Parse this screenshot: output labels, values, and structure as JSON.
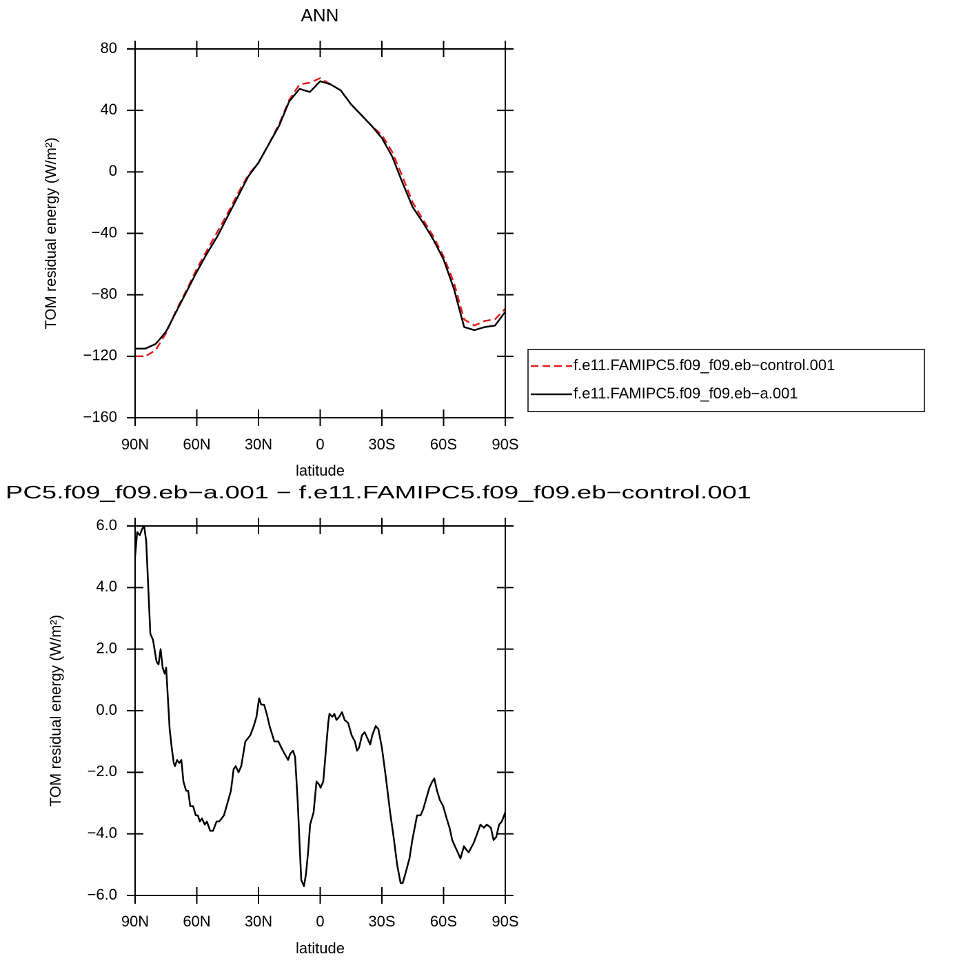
{
  "chart_data": [
    {
      "type": "line",
      "title": "ANN",
      "xlabel": "latitude",
      "ylabel": "TOM residual energy (W/m²)",
      "x": [
        90,
        85,
        80,
        75,
        70,
        65,
        60,
        55,
        50,
        45,
        40,
        35,
        30,
        25,
        20,
        15,
        10,
        5,
        0,
        -5,
        -10,
        -15,
        -20,
        -25,
        -30,
        -35,
        -40,
        -45,
        -50,
        -55,
        -60,
        -65,
        -70,
        -75,
        -80,
        -85,
        -90
      ],
      "series": [
        {
          "name": "f.e11.FAMIPC5.f09_f09.eb−control.001",
          "color": "#e41a1c",
          "dash": "dashed",
          "values": [
            -120,
            -120,
            -116,
            -105,
            -90,
            -77,
            -63,
            -51,
            -39,
            -27,
            -14,
            -2,
            6,
            18,
            31,
            47,
            57,
            58,
            61,
            57,
            53,
            44,
            37,
            30,
            24,
            13,
            -3,
            -20,
            -31,
            -42,
            -55,
            -72,
            -96,
            -100,
            -97,
            -96,
            -89
          ]
        },
        {
          "name": "f.e11.FAMIPC5.f09_f09.eb−a.001",
          "color": "#000000",
          "dash": "solid",
          "values": [
            -115,
            -115,
            -112,
            -104,
            -91,
            -78,
            -65,
            -53,
            -42,
            -29,
            -16,
            -3,
            6,
            18,
            30,
            46,
            54,
            52,
            59,
            57,
            53,
            44,
            37,
            30,
            22,
            10,
            -7,
            -23,
            -33,
            -44,
            -57,
            -76,
            -101,
            -103,
            -101,
            -100,
            -91
          ]
        }
      ],
      "xlim": [
        90,
        -90
      ],
      "xticks": [
        {
          "value": 90,
          "label": "90N"
        },
        {
          "value": 60,
          "label": "60N"
        },
        {
          "value": 30,
          "label": "30N"
        },
        0,
        {
          "value": -30,
          "label": "30S"
        },
        {
          "value": -60,
          "label": "60S"
        },
        {
          "value": -90,
          "label": "90S"
        }
      ],
      "ylim": [
        -160,
        80
      ],
      "yticks": [
        {
          "value": 80,
          "label": "80"
        },
        {
          "value": 40,
          "label": "40"
        },
        0,
        {
          "value": -40,
          "label": "−40"
        },
        {
          "value": -80,
          "label": "−80"
        },
        {
          "value": -120,
          "label": "−120"
        },
        {
          "value": -160,
          "label": "−160"
        }
      ],
      "legend": "right"
    },
    {
      "type": "line",
      "title": "PC5.f09_f09.eb−a.001  −  f.e11.FAMIPC5.f09_f09.eb−control.001",
      "xlabel": "latitude",
      "ylabel": "TOM residual energy (W/m²)",
      "x": [
        90,
        89,
        87.7,
        86.6,
        85.6,
        84.6,
        82.6,
        81.3,
        79.6,
        78.6,
        77.6,
        76.6,
        75.6,
        74.9,
        73.2,
        72.2,
        71.2,
        70.6,
        69.6,
        68.5,
        67.5,
        66.5,
        65.2,
        64.2,
        63.2,
        61.8,
        60.5,
        59.5,
        58.5,
        57.5,
        56.1,
        55.1,
        53.5,
        52.1,
        50.4,
        49.1,
        46.8,
        45.1,
        43.4,
        42.1,
        41.1,
        39.7,
        38.4,
        36.4,
        34.0,
        32.3,
        31.0,
        29.7,
        28.7,
        27.3,
        26.0,
        24.6,
        22.3,
        20.3,
        18.9,
        17.3,
        15.6,
        14.6,
        13.2,
        12.2,
        10.9,
        9.9,
        9.2,
        7.9,
        6.9,
        5.9,
        4.9,
        3.2,
        1.8,
        0.5,
        -0.2,
        -1.5,
        -2.5,
        -3.9,
        -4.5,
        -5.9,
        -6.9,
        -7.9,
        -9.2,
        -10.6,
        -11.9,
        -13.6,
        -15.3,
        -16.9,
        -17.9,
        -18.9,
        -20.3,
        -21.6,
        -23.0,
        -24.3,
        -25.3,
        -27.0,
        -28.3,
        -30.0,
        -32.0,
        -34.0,
        -35.7,
        -37.4,
        -39.1,
        -40.1,
        -41.4,
        -43.4,
        -44.8,
        -47.1,
        -48.8,
        -50.1,
        -51.8,
        -53.1,
        -54.5,
        -55.5,
        -56.8,
        -58.2,
        -59.8,
        -61.5,
        -62.9,
        -64.2,
        -65.5,
        -66.9,
        -68.2,
        -69.9,
        -70.9,
        -72.2,
        -74.6,
        -76.3,
        -77.9,
        -79.6,
        -81.0,
        -83.0,
        -84.3,
        -85.6,
        -87.0,
        -88.3,
        -90
      ],
      "series": [
        {
          "color": "#000000",
          "dash": "solid",
          "values": [
            5.0,
            5.8,
            5.7,
            5.9,
            6.0,
            5.5,
            2.5,
            2.3,
            1.6,
            1.5,
            2.0,
            1.4,
            1.2,
            1.4,
            -0.6,
            -1.2,
            -1.7,
            -1.8,
            -1.6,
            -1.7,
            -1.6,
            -2.3,
            -2.6,
            -2.6,
            -3.1,
            -3.1,
            -3.4,
            -3.4,
            -3.6,
            -3.5,
            -3.7,
            -3.6,
            -3.9,
            -3.9,
            -3.6,
            -3.6,
            -3.4,
            -3.0,
            -2.6,
            -1.9,
            -1.8,
            -2.0,
            -1.8,
            -1.0,
            -0.8,
            -0.5,
            -0.2,
            0.4,
            0.2,
            0.2,
            -0.1,
            -0.5,
            -1.0,
            -1.0,
            -1.2,
            -1.4,
            -1.6,
            -1.4,
            -1.3,
            -1.5,
            -3.0,
            -4.5,
            -5.5,
            -5.7,
            -5.3,
            -4.6,
            -3.7,
            -3.3,
            -2.3,
            -2.4,
            -2.5,
            -2.3,
            -1.5,
            -0.4,
            -0.1,
            -0.2,
            -0.1,
            -0.3,
            -0.2,
            -0.05,
            -0.3,
            -0.4,
            -0.8,
            -1.0,
            -1.3,
            -1.2,
            -0.8,
            -0.7,
            -0.9,
            -1.1,
            -0.8,
            -0.5,
            -0.6,
            -1.2,
            -2.2,
            -3.3,
            -4.1,
            -5.0,
            -5.6,
            -5.6,
            -5.3,
            -4.8,
            -4.2,
            -3.4,
            -3.4,
            -3.2,
            -2.8,
            -2.5,
            -2.3,
            -2.2,
            -2.6,
            -2.9,
            -3.1,
            -3.5,
            -3.8,
            -4.2,
            -4.4,
            -4.6,
            -4.8,
            -4.4,
            -4.5,
            -4.6,
            -4.3,
            -4.0,
            -3.7,
            -3.8,
            -3.7,
            -3.8,
            -4.2,
            -4.1,
            -3.7,
            -3.6,
            -3.3
          ]
        }
      ],
      "xlim": [
        90,
        -90
      ],
      "xticks": [
        {
          "value": 90,
          "label": "90N"
        },
        {
          "value": 60,
          "label": "60N"
        },
        {
          "value": 30,
          "label": "30N"
        },
        0,
        {
          "value": -30,
          "label": "30S"
        },
        {
          "value": -60,
          "label": "60S"
        },
        {
          "value": -90,
          "label": "90S"
        }
      ],
      "ylim": [
        -6,
        6
      ],
      "yticks": [
        {
          "value": 6,
          "label": "6.0"
        },
        {
          "value": 4,
          "label": "4.0"
        },
        {
          "value": 2,
          "label": "2.0"
        },
        {
          "value": 0,
          "label": "0.0"
        },
        {
          "value": -2,
          "label": "−2.0"
        },
        {
          "value": -4,
          "label": "−4.0"
        },
        {
          "value": -6,
          "label": "−6.0"
        }
      ]
    }
  ]
}
